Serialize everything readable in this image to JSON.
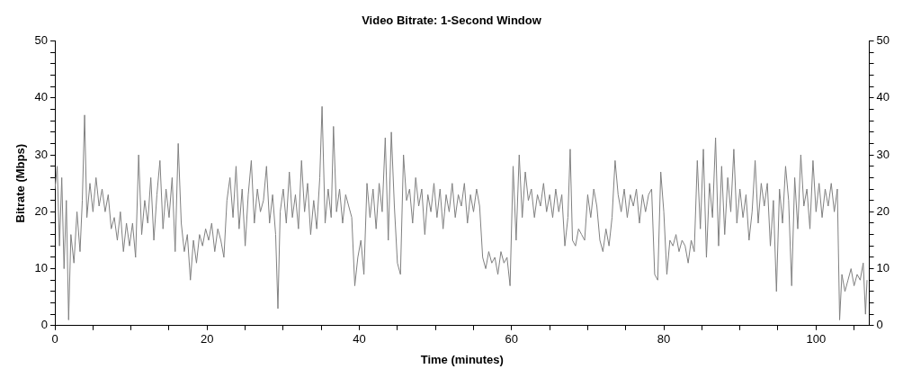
{
  "chart_data": {
    "type": "line",
    "title": "Video Bitrate: 1-Second Window",
    "xlabel": "Time (minutes)",
    "ylabel": "Bitrate (Mbps)",
    "xlim": [
      0,
      107
    ],
    "ylim": [
      0,
      50
    ],
    "y2lim": [
      0,
      50
    ],
    "xticks": [
      0,
      {
        "value": 5,
        "label": null
      },
      {
        "value": 10,
        "label": null
      },
      {
        "value": 15,
        "label": null
      },
      20,
      {
        "value": 25,
        "label": null
      },
      {
        "value": 30,
        "label": null
      },
      {
        "value": 35,
        "label": null
      },
      40,
      {
        "value": 45,
        "label": null
      },
      {
        "value": 50,
        "label": null
      },
      {
        "value": 55,
        "label": null
      },
      60,
      {
        "value": 65,
        "label": null
      },
      {
        "value": 70,
        "label": null
      },
      {
        "value": 75,
        "label": null
      },
      80,
      {
        "value": 85,
        "label": null
      },
      {
        "value": 90,
        "label": null
      },
      {
        "value": 95,
        "label": null
      },
      100,
      {
        "value": 105,
        "label": null
      }
    ],
    "yticks": [
      0,
      {
        "value": 2,
        "label": null
      },
      {
        "value": 4,
        "label": null
      },
      {
        "value": 6,
        "label": null
      },
      {
        "value": 8,
        "label": null
      },
      10,
      {
        "value": 12,
        "label": null
      },
      {
        "value": 14,
        "label": null
      },
      {
        "value": 16,
        "label": null
      },
      {
        "value": 18,
        "label": null
      },
      20,
      {
        "value": 22,
        "label": null
      },
      {
        "value": 24,
        "label": null
      },
      {
        "value": 26,
        "label": null
      },
      {
        "value": 28,
        "label": null
      },
      30,
      {
        "value": 32,
        "label": null
      },
      {
        "value": 34,
        "label": null
      },
      {
        "value": 36,
        "label": null
      },
      {
        "value": 38,
        "label": null
      },
      40,
      {
        "value": 42,
        "label": null
      },
      {
        "value": 44,
        "label": null
      },
      {
        "value": 46,
        "label": null
      },
      {
        "value": 48,
        "label": null
      },
      50
    ],
    "y2ticks": [
      0,
      {
        "value": 2,
        "label": null
      },
      {
        "value": 4,
        "label": null
      },
      {
        "value": 6,
        "label": null
      },
      {
        "value": 8,
        "label": null
      },
      10,
      {
        "value": 12,
        "label": null
      },
      {
        "value": 14,
        "label": null
      },
      {
        "value": 16,
        "label": null
      },
      {
        "value": 18,
        "label": null
      },
      20,
      {
        "value": 22,
        "label": null
      },
      {
        "value": 24,
        "label": null
      },
      {
        "value": 26,
        "label": null
      },
      {
        "value": 28,
        "label": null
      },
      30,
      {
        "value": 32,
        "label": null
      },
      {
        "value": 34,
        "label": null
      },
      {
        "value": 36,
        "label": null
      },
      {
        "value": 38,
        "label": null
      },
      40,
      {
        "value": 42,
        "label": null
      },
      {
        "value": 44,
        "label": null
      },
      {
        "value": 46,
        "label": null
      },
      {
        "value": 48,
        "label": null
      },
      50
    ],
    "grid": false,
    "legend": false,
    "marker": "none",
    "line_style": "solid",
    "series": [
      {
        "color": "#808080",
        "x": [
          0,
          0.3,
          0.6,
          0.9,
          1.2,
          1.5,
          1.8,
          2.1,
          2.5,
          2.9,
          3.3,
          3.6,
          3.9,
          4.2,
          4.6,
          5,
          5.4,
          5.8,
          6.2,
          6.6,
          7,
          7.4,
          7.8,
          8.2,
          8.6,
          9,
          9.4,
          9.8,
          10.2,
          10.6,
          11,
          11.4,
          11.8,
          12.2,
          12.6,
          13,
          13.4,
          13.8,
          14.2,
          14.6,
          15,
          15.4,
          15.8,
          16.2,
          16.6,
          17,
          17.4,
          17.8,
          18.2,
          18.6,
          19,
          19.4,
          19.8,
          20.2,
          20.6,
          21,
          21.4,
          21.8,
          22.2,
          22.6,
          23,
          23.4,
          23.8,
          24.2,
          24.6,
          25,
          25.4,
          25.8,
          26.2,
          26.6,
          27,
          27.4,
          27.8,
          28.2,
          28.6,
          29,
          29.3,
          29.6,
          30,
          30.4,
          30.8,
          31.2,
          31.6,
          32,
          32.4,
          32.8,
          33.2,
          33.6,
          34,
          34.4,
          34.8,
          35.1,
          35.5,
          35.9,
          36.3,
          36.6,
          37,
          37.4,
          37.8,
          38.2,
          38.6,
          39,
          39.4,
          39.8,
          40.2,
          40.6,
          41,
          41.4,
          41.8,
          42.2,
          42.6,
          43,
          43.4,
          43.8,
          44.2,
          44.6,
          45,
          45.4,
          45.8,
          46.2,
          46.6,
          47,
          47.4,
          47.8,
          48.2,
          48.6,
          49,
          49.4,
          49.8,
          50.2,
          50.6,
          51,
          51.4,
          51.8,
          52.2,
          52.6,
          53,
          53.4,
          53.8,
          54.2,
          54.6,
          55,
          55.4,
          55.8,
          56.2,
          56.6,
          57,
          57.4,
          57.8,
          58.2,
          58.6,
          59,
          59.4,
          59.8,
          60.2,
          60.6,
          61,
          61.4,
          61.8,
          62.2,
          62.6,
          63,
          63.4,
          63.8,
          64.2,
          64.6,
          65,
          65.4,
          65.8,
          66.2,
          66.6,
          67,
          67.4,
          67.7,
          68,
          68.4,
          68.8,
          69.2,
          69.6,
          70,
          70.4,
          70.8,
          71.2,
          71.6,
          72,
          72.4,
          72.8,
          73.2,
          73.6,
          74,
          74.4,
          74.8,
          75.2,
          75.6,
          76,
          76.4,
          76.8,
          77.2,
          77.6,
          78,
          78.4,
          78.8,
          79.2,
          79.6,
          80,
          80.4,
          80.8,
          81.2,
          81.6,
          82,
          82.4,
          82.8,
          83.2,
          83.6,
          84,
          84.4,
          84.8,
          85.2,
          85.6,
          86,
          86.4,
          86.8,
          87.2,
          87.6,
          88,
          88.4,
          88.8,
          89.2,
          89.6,
          90,
          90.4,
          90.8,
          91.2,
          91.6,
          92,
          92.4,
          92.8,
          93.2,
          93.6,
          94,
          94.4,
          94.8,
          95.2,
          95.6,
          96,
          96.4,
          96.8,
          97.2,
          97.6,
          98,
          98.4,
          98.8,
          99.2,
          99.6,
          100,
          100.4,
          100.8,
          101.2,
          101.6,
          102,
          102.4,
          102.8,
          103.1,
          103.4,
          103.8,
          104.2,
          104.6,
          105,
          105.4,
          105.8,
          106.2,
          106.5,
          106.7
        ],
        "values": [
          24,
          28,
          14,
          26,
          10,
          22,
          1,
          16,
          11,
          20,
          13,
          22,
          37,
          19,
          25,
          20,
          26,
          21,
          24,
          20,
          23,
          17,
          19,
          15,
          20,
          13,
          18,
          14,
          18,
          12,
          30,
          16,
          22,
          18,
          26,
          15,
          23,
          29,
          17,
          24,
          19,
          26,
          13,
          32,
          18,
          13,
          16,
          8,
          15,
          11,
          16,
          14,
          17,
          15,
          18,
          13,
          17,
          15,
          12,
          22,
          26,
          19,
          28,
          17,
          24,
          14,
          23,
          29,
          18,
          24,
          20,
          22,
          28,
          18,
          23,
          16,
          3,
          20,
          24,
          18,
          27,
          19,
          23,
          17,
          29,
          20,
          25,
          16,
          22,
          17,
          26,
          38.5,
          18,
          24,
          19,
          35,
          20,
          24,
          18,
          23,
          21,
          19,
          7,
          12,
          15,
          9,
          25,
          19,
          24,
          17,
          25,
          20,
          33,
          15,
          34,
          21,
          11,
          9,
          30,
          22,
          24,
          18,
          26,
          21,
          24,
          16,
          23,
          20,
          25,
          19,
          24,
          17,
          23,
          20,
          25,
          19,
          23,
          21,
          25,
          18,
          23,
          20,
          24,
          21,
          12,
          10,
          13,
          11,
          12,
          9,
          13,
          11,
          12,
          7,
          28,
          15,
          30,
          19,
          27,
          22,
          24,
          19,
          23,
          21,
          25,
          20,
          23,
          19,
          24,
          20,
          23,
          14,
          19,
          31,
          15,
          14,
          17,
          16,
          15,
          23,
          19,
          24,
          21,
          15,
          13,
          17,
          14,
          19,
          29,
          23,
          20,
          24,
          19,
          23,
          21,
          24,
          18,
          23,
          20,
          23,
          24,
          9,
          8,
          27,
          20,
          9,
          15,
          14,
          16,
          13,
          15,
          14,
          11,
          15,
          13,
          29,
          17,
          31,
          12,
          25,
          19,
          33,
          14,
          28,
          16,
          26,
          20,
          31,
          18,
          24,
          19,
          23,
          15,
          20,
          29,
          18,
          25,
          21,
          25,
          14,
          22,
          6,
          24,
          18,
          28,
          22,
          7,
          26,
          17,
          30,
          21,
          24,
          17,
          29,
          20,
          25,
          19,
          24,
          21,
          25,
          20,
          24,
          1,
          9,
          6,
          8,
          10,
          7,
          9,
          8,
          11,
          2,
          8
        ]
      }
    ]
  }
}
